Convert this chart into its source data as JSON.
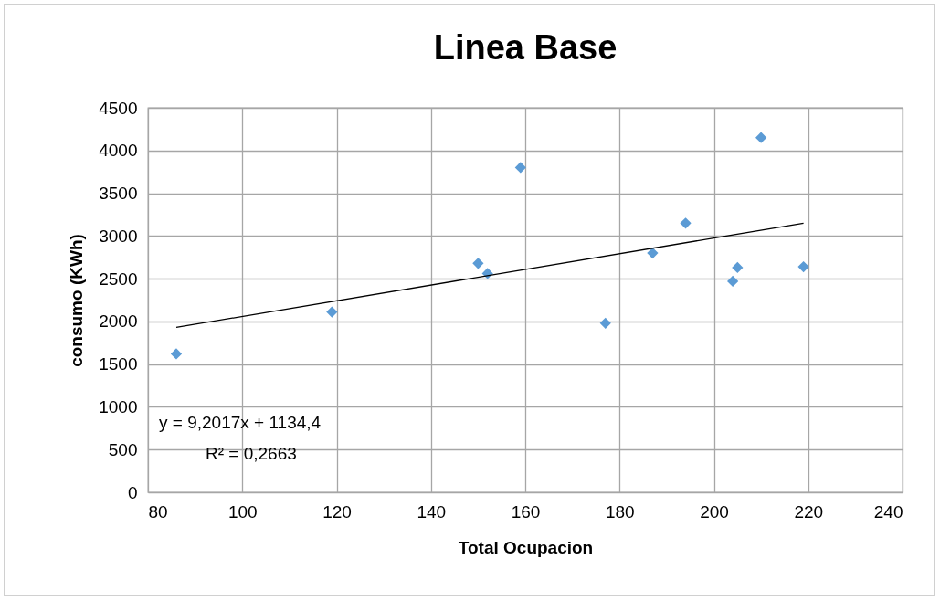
{
  "chart_data": {
    "type": "scatter",
    "title": "Linea Base",
    "xlabel": "Total Ocupacion",
    "ylabel": "consumo (KWh)",
    "series": [
      {
        "color": "#5b9bd5",
        "marker": "diamond",
        "x": [
          86,
          119,
          150,
          152,
          159,
          177,
          187,
          194,
          204,
          205,
          210,
          219
        ],
        "values": [
          1620,
          2110,
          2680,
          2560,
          3800,
          1980,
          2800,
          3150,
          2470,
          2630,
          4150,
          2640
        ]
      },
      {
        "type": "line",
        "color": "#000000",
        "x": [
          86,
          219
        ],
        "values": [
          1930,
          3150
        ]
      }
    ],
    "xlim": [
      80,
      240
    ],
    "xticks": [
      80,
      100,
      120,
      140,
      160,
      180,
      200,
      220,
      240
    ],
    "ylim": [
      0,
      4500
    ],
    "yticks": [
      0,
      500,
      1000,
      1500,
      2000,
      2500,
      3000,
      3500,
      4000,
      4500
    ],
    "grid": true,
    "annotations": [
      "y = 9,2017x + 1134,4",
      "R² = 0,2663"
    ]
  }
}
